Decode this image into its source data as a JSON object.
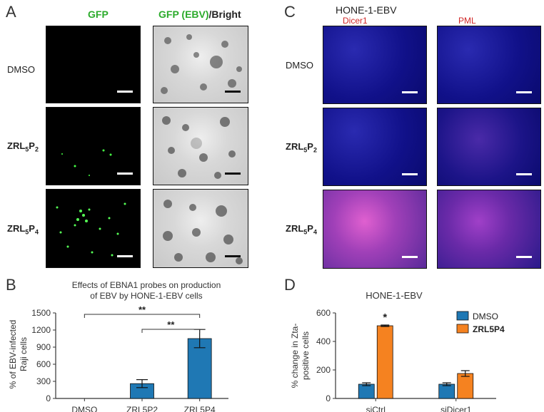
{
  "panel_letters": {
    "a": "A",
    "b": "B",
    "c": "C",
    "d": "D"
  },
  "panel_a": {
    "col1_header": "GFP",
    "col2_header_green": "GFP (EBV)",
    "col2_header_black": "/Bright",
    "rows": [
      "DMSO",
      "ZRL5P2",
      "ZRL5P4"
    ]
  },
  "panel_c": {
    "title": "HONE-1-EBV",
    "col1_header": "Dicer1",
    "col2_header": "PML",
    "rows": [
      "DMSO",
      "ZRL5P2",
      "ZRL5P4"
    ]
  },
  "chart_data": [
    {
      "type": "bar",
      "title": "Effects of EBNA1 probes on production of EBV by HONE-1-EBV cells",
      "title_lines": [
        "Effects of EBNA1 probes on production",
        "of EBV by HONE-1-EBV cells"
      ],
      "categories": [
        "DMSO",
        "ZRL5P2",
        "ZRL5P4"
      ],
      "values": [
        0,
        260,
        1050
      ],
      "errors": [
        0,
        70,
        160
      ],
      "ylabel_lines": [
        "% of EBV-infected",
        "Raji cells"
      ],
      "ylim": [
        0,
        1500
      ],
      "yticks": [
        "0",
        "300",
        "600",
        "900",
        "1200",
        "1500"
      ],
      "ytick_values": [
        0,
        300,
        600,
        900,
        1200,
        1500
      ],
      "significance": [
        "**",
        "**"
      ],
      "color": "#1f78b4"
    },
    {
      "type": "bar",
      "title": "HONE-1-EBV",
      "categories": [
        "siCtrl",
        "siDicer1"
      ],
      "series": [
        {
          "name": "DMSO",
          "values": [
            100,
            100
          ],
          "errors": [
            10,
            10
          ],
          "color": "#1f78b4"
        },
        {
          "name": "ZRL5P4",
          "values": [
            510,
            175
          ],
          "errors": [
            5,
            20
          ],
          "color": "#f58220"
        }
      ],
      "ylabel_lines": [
        "% change in Zta-",
        "positive cells"
      ],
      "ylim": [
        0,
        600
      ],
      "yticks": [
        "0",
        "200",
        "400",
        "600"
      ],
      "ytick_values": [
        0,
        200,
        400,
        600
      ],
      "significance": [
        "*"
      ],
      "legend": "top-right"
    }
  ]
}
